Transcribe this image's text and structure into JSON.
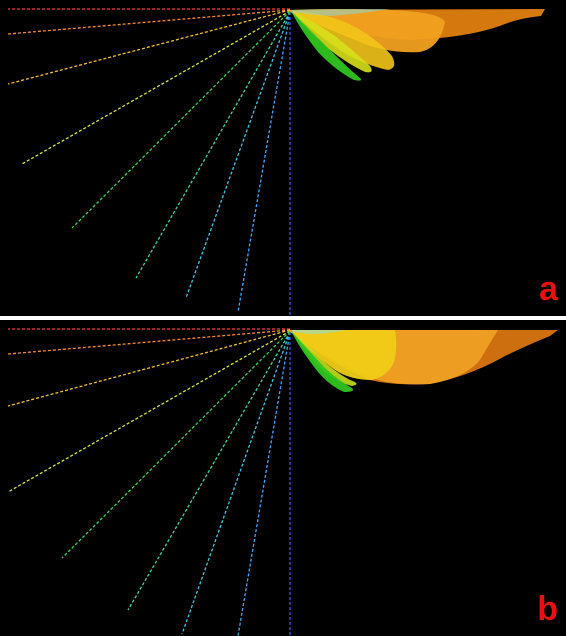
{
  "panels": [
    {
      "label": "a"
    },
    {
      "label": "b"
    }
  ],
  "colors": {
    "background": "#000000",
    "separator": "#ffffff",
    "label": "#e8110f",
    "axis": "#3a4fff",
    "ray_palette": [
      "#ff3b3b",
      "#ff8a2a",
      "#f5c02a",
      "#d9e23a",
      "#7fe03a",
      "#3ad64a",
      "#3ad6a0",
      "#38c8e8",
      "#3aa8ff"
    ],
    "lobes": [
      "#e07f10",
      "#f0a020",
      "#f2c418",
      "#e8e41a",
      "#a8dc1e",
      "#3ccc28"
    ]
  }
}
